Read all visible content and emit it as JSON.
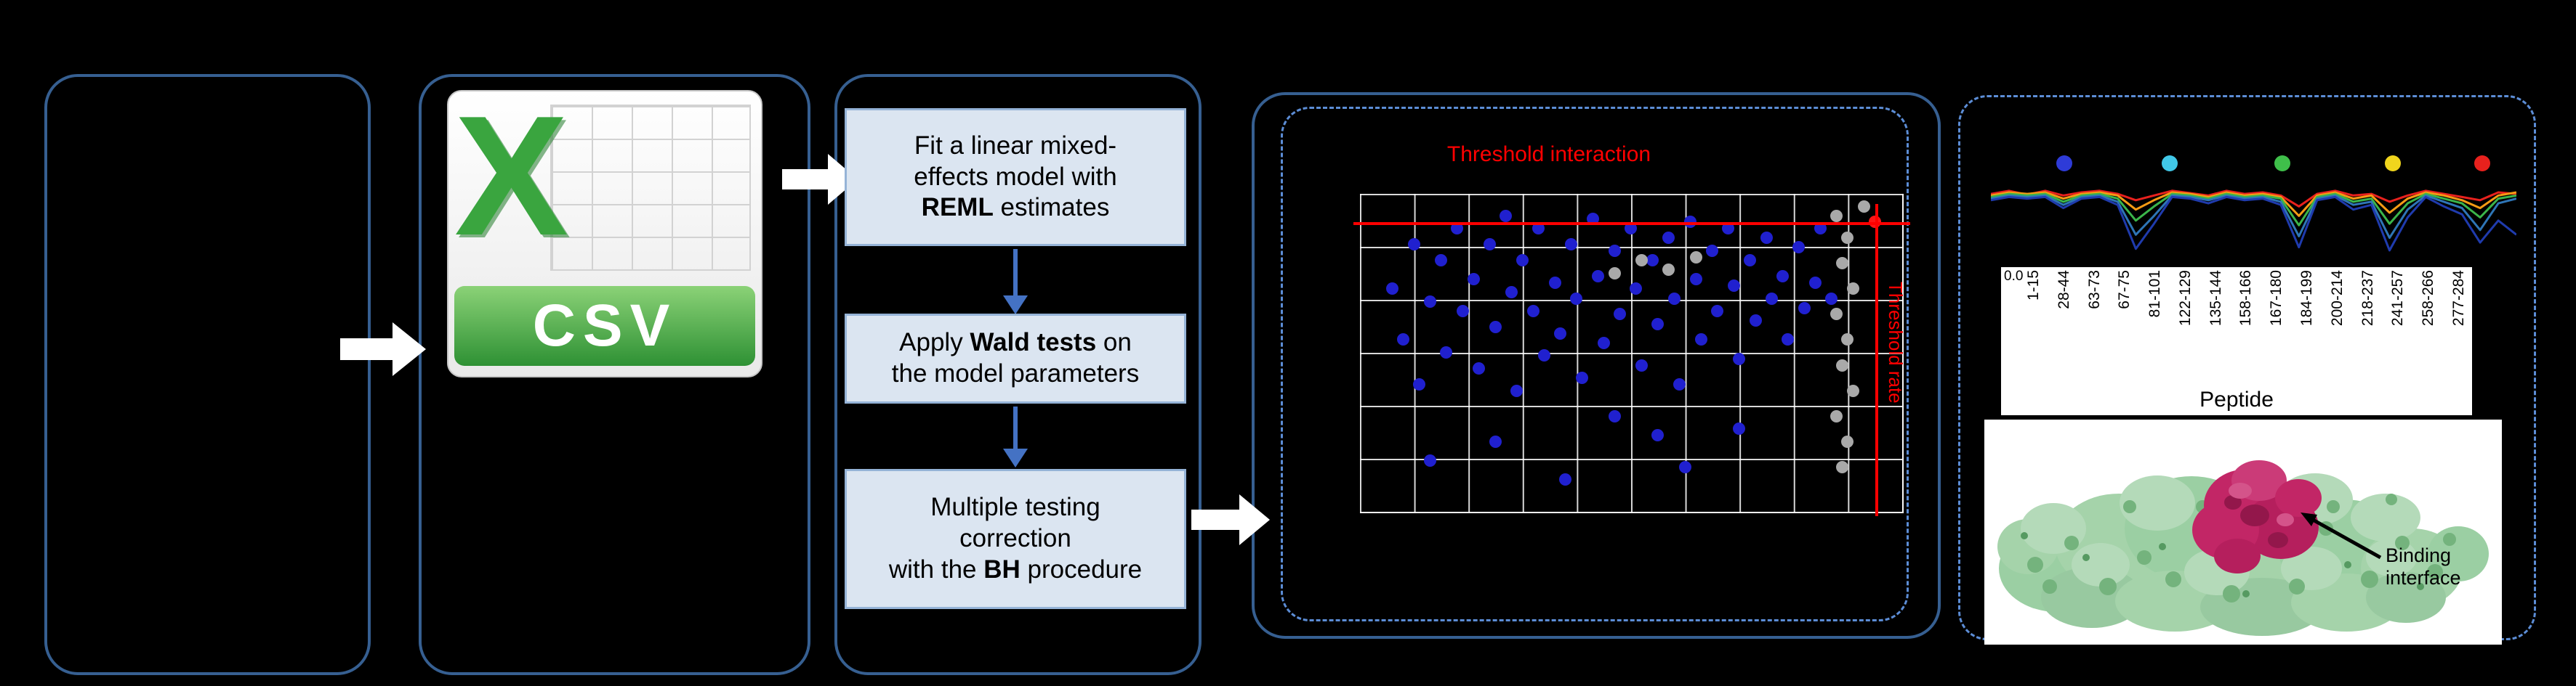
{
  "panels": {
    "csv_icon": {
      "letter": "X",
      "label": "CSV"
    },
    "pipeline": {
      "boxes": [
        {
          "segments": [
            {
              "text": "Fit a linear mixed-\neffects model with\n",
              "bold": false
            },
            {
              "text": "REML",
              "bold": true
            },
            {
              "text": " estimates",
              "bold": false
            }
          ]
        },
        {
          "segments": [
            {
              "text": "Apply ",
              "bold": false
            },
            {
              "text": "Wald tests",
              "bold": true
            },
            {
              "text": " on\nthe model parameters",
              "bold": false
            }
          ]
        },
        {
          "segments": [
            {
              "text": "Multiple testing\ncorrection\nwith the ",
              "bold": false
            },
            {
              "text": "BH",
              "bold": true
            },
            {
              "text": " procedure",
              "bold": false
            }
          ]
        }
      ]
    },
    "scatter_plot": {
      "threshold_interaction": "Threshold interaction",
      "threshold_rate": "Threshold rate",
      "points": [
        [
          6,
          30,
          "b"
        ],
        [
          8,
          46,
          "b"
        ],
        [
          10,
          16,
          "b"
        ],
        [
          11,
          60,
          "b"
        ],
        [
          13,
          34,
          "b"
        ],
        [
          15,
          21,
          "b"
        ],
        [
          16,
          50,
          "b"
        ],
        [
          18,
          11,
          "b"
        ],
        [
          19,
          37,
          "b"
        ],
        [
          21,
          27,
          "b"
        ],
        [
          22,
          55,
          "b"
        ],
        [
          24,
          16,
          "b"
        ],
        [
          25,
          42,
          "b"
        ],
        [
          27,
          7,
          "b"
        ],
        [
          28,
          31,
          "b"
        ],
        [
          29,
          62,
          "b"
        ],
        [
          30,
          21,
          "b"
        ],
        [
          32,
          37,
          "b"
        ],
        [
          33,
          11,
          "b"
        ],
        [
          34,
          51,
          "b"
        ],
        [
          36,
          28,
          "b"
        ],
        [
          37,
          44,
          "b"
        ],
        [
          39,
          16,
          "b"
        ],
        [
          40,
          33,
          "b"
        ],
        [
          41,
          58,
          "b"
        ],
        [
          43,
          8,
          "b"
        ],
        [
          44,
          26,
          "b"
        ],
        [
          45,
          47,
          "b"
        ],
        [
          47,
          18,
          "b"
        ],
        [
          48,
          38,
          "b"
        ],
        [
          50,
          11,
          "b"
        ],
        [
          51,
          30,
          "b"
        ],
        [
          52,
          54,
          "b"
        ],
        [
          54,
          21,
          "b"
        ],
        [
          55,
          41,
          "b"
        ],
        [
          57,
          14,
          "b"
        ],
        [
          58,
          33,
          "b"
        ],
        [
          59,
          60,
          "b"
        ],
        [
          61,
          9,
          "b"
        ],
        [
          62,
          27,
          "b"
        ],
        [
          63,
          46,
          "b"
        ],
        [
          65,
          18,
          "b"
        ],
        [
          66,
          37,
          "b"
        ],
        [
          68,
          11,
          "b"
        ],
        [
          69,
          29,
          "b"
        ],
        [
          70,
          52,
          "b"
        ],
        [
          72,
          21,
          "b"
        ],
        [
          73,
          40,
          "b"
        ],
        [
          75,
          14,
          "b"
        ],
        [
          76,
          33,
          "b"
        ],
        [
          78,
          26,
          "b"
        ],
        [
          79,
          46,
          "b"
        ],
        [
          81,
          17,
          "b"
        ],
        [
          82,
          36,
          "b"
        ],
        [
          84,
          28,
          "b"
        ],
        [
          85,
          11,
          "b"
        ],
        [
          87,
          33,
          "b"
        ],
        [
          25,
          78,
          "b"
        ],
        [
          13,
          84,
          "b"
        ],
        [
          38,
          90,
          "b"
        ],
        [
          60,
          86,
          "b"
        ],
        [
          70,
          74,
          "b"
        ],
        [
          47,
          70,
          "b"
        ],
        [
          55,
          76,
          "b"
        ],
        [
          88,
          7,
          "g"
        ],
        [
          90,
          14,
          "g"
        ],
        [
          89,
          22,
          "g"
        ],
        [
          91,
          30,
          "g"
        ],
        [
          88,
          38,
          "g"
        ],
        [
          90,
          46,
          "g"
        ],
        [
          89,
          54,
          "g"
        ],
        [
          91,
          62,
          "g"
        ],
        [
          88,
          70,
          "g"
        ],
        [
          90,
          78,
          "g"
        ],
        [
          89,
          86,
          "g"
        ],
        [
          62,
          20,
          "g"
        ],
        [
          57,
          24,
          "g"
        ],
        [
          52,
          21,
          "g"
        ],
        [
          47,
          25,
          "g"
        ],
        [
          93,
          4,
          "g"
        ],
        [
          95,
          9,
          "r"
        ]
      ]
    },
    "uptake_profile": {
      "markers": [
        [
          14,
          "#2e3bd8"
        ],
        [
          34,
          "#41c8e8"
        ],
        [
          55.5,
          "#3fbf4a"
        ],
        [
          76.5,
          "#f0d51d"
        ],
        [
          93.5,
          "#e8211d"
        ]
      ],
      "series": [
        {
          "color": "#e8211d",
          "values": [
            0.86,
            0.9,
            0.85,
            0.9,
            0.84,
            0.88,
            0.9,
            0.86,
            0.78,
            0.84,
            0.9,
            0.87,
            0.84,
            0.9,
            0.86,
            0.88,
            0.84,
            0.7,
            0.86,
            0.9,
            0.84,
            0.86,
            0.76,
            0.84,
            0.9,
            0.86,
            0.82,
            0.78,
            0.88,
            0.86
          ]
        },
        {
          "color": "#f59b14",
          "values": [
            0.84,
            0.88,
            0.86,
            0.88,
            0.8,
            0.86,
            0.88,
            0.84,
            0.66,
            0.78,
            0.88,
            0.86,
            0.82,
            0.88,
            0.84,
            0.86,
            0.82,
            0.58,
            0.84,
            0.88,
            0.8,
            0.84,
            0.62,
            0.8,
            0.88,
            0.84,
            0.78,
            0.68,
            0.84,
            0.88
          ]
        },
        {
          "color": "#3bb54a",
          "values": [
            0.82,
            0.86,
            0.84,
            0.86,
            0.76,
            0.84,
            0.86,
            0.8,
            0.52,
            0.7,
            0.86,
            0.84,
            0.8,
            0.86,
            0.82,
            0.84,
            0.8,
            0.46,
            0.82,
            0.86,
            0.76,
            0.8,
            0.48,
            0.74,
            0.86,
            0.8,
            0.74,
            0.56,
            0.8,
            0.84
          ]
        },
        {
          "color": "#2e75b6",
          "values": [
            0.8,
            0.84,
            0.82,
            0.84,
            0.72,
            0.82,
            0.84,
            0.76,
            0.34,
            0.58,
            0.84,
            0.82,
            0.78,
            0.84,
            0.8,
            0.82,
            0.76,
            0.32,
            0.8,
            0.84,
            0.72,
            0.76,
            0.3,
            0.66,
            0.84,
            0.76,
            0.68,
            0.4,
            0.74,
            0.8
          ]
        },
        {
          "color": "#1f3bad",
          "values": [
            0.78,
            0.82,
            0.8,
            0.82,
            0.68,
            0.8,
            0.82,
            0.72,
            0.16,
            0.48,
            0.82,
            0.8,
            0.74,
            0.82,
            0.78,
            0.8,
            0.72,
            0.18,
            0.78,
            0.82,
            0.66,
            0.72,
            0.14,
            0.56,
            0.82,
            0.7,
            0.6,
            0.24,
            0.52,
            0.34
          ]
        }
      ]
    },
    "peptide_axis": {
      "y_tick": "0.0",
      "labels": [
        "1-15",
        "28-44",
        "63-73",
        "67-75",
        "81-101",
        "122-129",
        "135-144",
        "158-166",
        "167-180",
        "184-199",
        "200-214",
        "218-237",
        "241-257",
        "258-266",
        "277-284"
      ],
      "axis_label": "Peptide"
    },
    "structure": {
      "annotation": "Binding interface"
    }
  }
}
